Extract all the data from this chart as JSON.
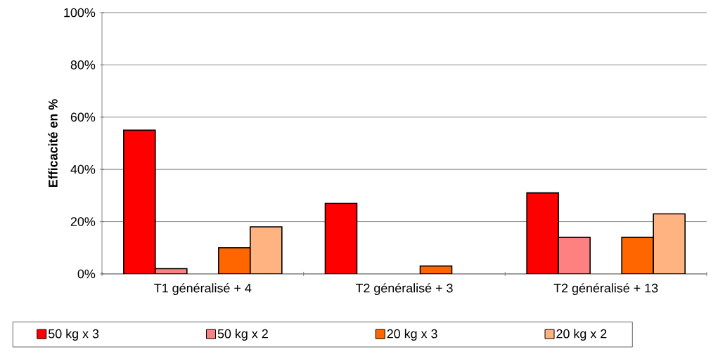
{
  "chart_data": {
    "type": "bar",
    "ylabel": "Efficacité en %",
    "categories": [
      "T1 généralisé + 4",
      "T2 généralisé + 3",
      "T2 généralisé + 13"
    ],
    "series": [
      {
        "name": "50 kg x 3",
        "color": "#ff0000",
        "values": [
          55,
          27,
          31
        ]
      },
      {
        "name": "50 kg x 2",
        "color": "#ff8080",
        "values": [
          2,
          null,
          14
        ]
      },
      {
        "name": "20 kg x 3",
        "color": "#ff6600",
        "values": [
          10,
          3,
          14
        ]
      },
      {
        "name": "20 kg x 2",
        "color": "#ffb380",
        "values": [
          18,
          null,
          23
        ]
      }
    ],
    "ylim": [
      0,
      100
    ],
    "yticks": [
      {
        "value": 0,
        "label": "0%"
      },
      {
        "value": 20,
        "label": "20%"
      },
      {
        "value": 40,
        "label": "40%"
      },
      {
        "value": 60,
        "label": "60%"
      },
      {
        "value": 80,
        "label": "80%"
      },
      {
        "value": 100,
        "label": "100%"
      }
    ],
    "grid": "y",
    "legend": "bottom"
  }
}
